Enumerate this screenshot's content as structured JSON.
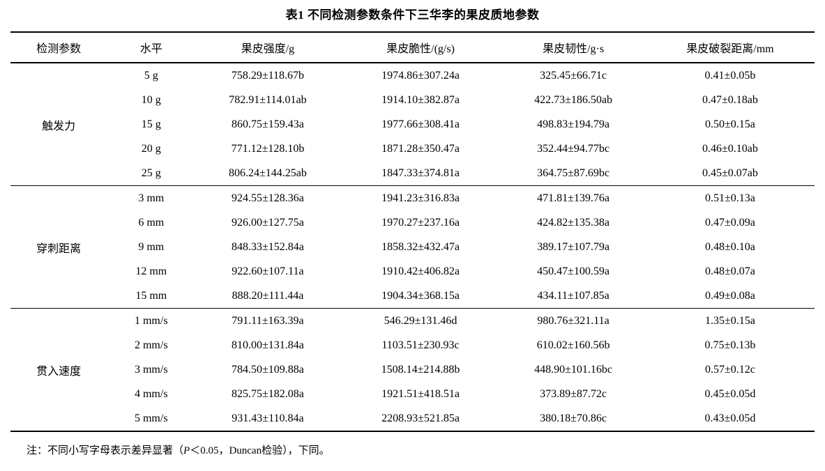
{
  "title": "表1 不同检测参数条件下三华李的果皮质地参数",
  "table": {
    "headers": [
      "检测参数",
      "水平",
      "果皮强度/g",
      "果皮脆性/(g/s)",
      "果皮韧性/g·s",
      "果皮破裂距离/mm"
    ],
    "groups": [
      {
        "parameter": "触发力",
        "rows": [
          [
            "5 g",
            "758.29±118.67b",
            "1974.86±307.24a",
            "325.45±66.71c",
            "0.41±0.05b"
          ],
          [
            "10 g",
            "782.91±114.01ab",
            "1914.10±382.87a",
            "422.73±186.50ab",
            "0.47±0.18ab"
          ],
          [
            "15 g",
            "860.75±159.43a",
            "1977.66±308.41a",
            "498.83±194.79a",
            "0.50±0.15a"
          ],
          [
            "20 g",
            "771.12±128.10b",
            "1871.28±350.47a",
            "352.44±94.77bc",
            "0.46±0.10ab"
          ],
          [
            "25 g",
            "806.24±144.25ab",
            "1847.33±374.81a",
            "364.75±87.69bc",
            "0.45±0.07ab"
          ]
        ]
      },
      {
        "parameter": "穿刺距离",
        "rows": [
          [
            "3 mm",
            "924.55±128.36a",
            "1941.23±316.83a",
            "471.81±139.76a",
            "0.51±0.13a"
          ],
          [
            "6 mm",
            "926.00±127.75a",
            "1970.27±237.16a",
            "424.82±135.38a",
            "0.47±0.09a"
          ],
          [
            "9 mm",
            "848.33±152.84a",
            "1858.32±432.47a",
            "389.17±107.79a",
            "0.48±0.10a"
          ],
          [
            "12 mm",
            "922.60±107.11a",
            "1910.42±406.82a",
            "450.47±100.59a",
            "0.48±0.07a"
          ],
          [
            "15 mm",
            "888.20±111.44a",
            "1904.34±368.15a",
            "434.11±107.85a",
            "0.49±0.08a"
          ]
        ]
      },
      {
        "parameter": "贯入速度",
        "rows": [
          [
            "1 mm/s",
            "791.11±163.39a",
            "546.29±131.46d",
            "980.76±321.11a",
            "1.35±0.15a"
          ],
          [
            "2 mm/s",
            "810.00±131.84a",
            "1103.51±230.93c",
            "610.02±160.56b",
            "0.75±0.13b"
          ],
          [
            "3 mm/s",
            "784.50±109.88a",
            "1508.14±214.88b",
            "448.90±101.16bc",
            "0.57±0.12c"
          ],
          [
            "4 mm/s",
            "825.75±182.08a",
            "1921.51±418.51a",
            "373.89±87.72c",
            "0.45±0.05d"
          ],
          [
            "5 mm/s",
            "931.43±110.84a",
            "2208.93±521.85a",
            "380.18±70.86c",
            "0.43±0.05d"
          ]
        ]
      }
    ]
  },
  "footnote": {
    "part1": "注：不同小写字母表示差异显著（",
    "italic": "P",
    "part2": "＜0.05，Duncan检验），下同。"
  }
}
